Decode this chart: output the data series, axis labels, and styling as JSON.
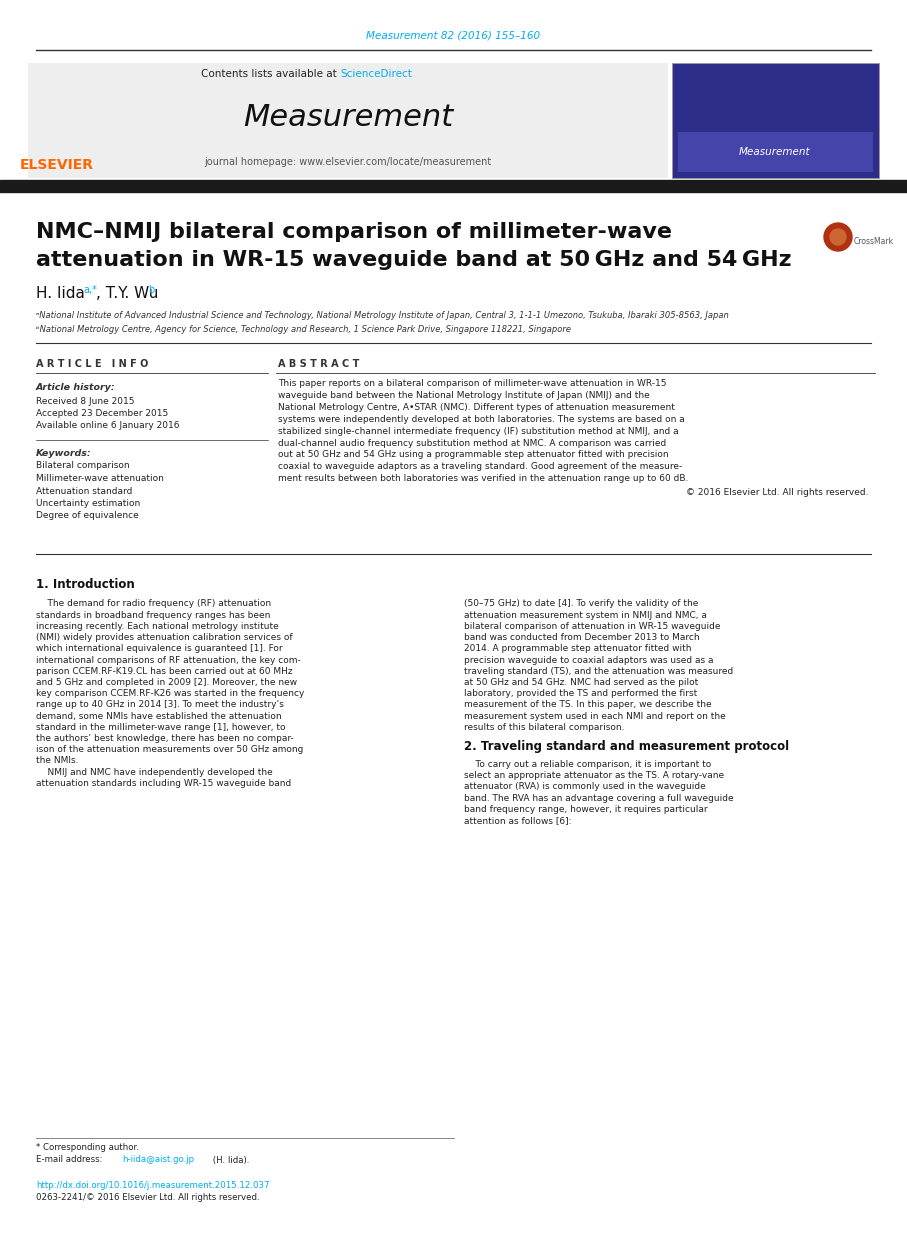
{
  "journal_ref": "Measurement 82 (2016) 155–160",
  "journal_ref_color": "#00AEEF",
  "header_text": "Contents lists available at ",
  "sciencedirect_text": "ScienceDirect",
  "sciencedirect_color": "#00AEEF",
  "journal_title": "Measurement",
  "homepage_text": "journal homepage: www.elsevier.com/locate/measurement",
  "paper_title_line1": "NMC–NMIJ bilateral comparison of millimeter-wave",
  "paper_title_line2": "attenuation in WR-15 waveguide band at 50 GHz and 54 GHz",
  "affil_a": "ᵃNational Institute of Advanced Industrial Science and Technology, National Metrology Institute of Japan, Central 3, 1-1-1 Umezono, Tsukuba, Ibaraki 305-8563, Japan",
  "affil_b": "ᵇNational Metrology Centre, Agency for Science, Technology and Research, 1 Science Park Drive, Singapore 118221, Singapore",
  "article_info_header": "A R T I C L E   I N F O",
  "article_history_header": "Article history:",
  "received": "Received 8 June 2015",
  "accepted": "Accepted 23 December 2015",
  "available": "Available online 6 January 2016",
  "keywords_header": "Keywords:",
  "keywords": [
    "Bilateral comparison",
    "Millimeter-wave attenuation",
    "Attenuation standard",
    "Uncertainty estimation",
    "Degree of equivalence"
  ],
  "abstract_header": "A B S T R A C T",
  "copyright_text": "© 2016 Elsevier Ltd. All rights reserved.",
  "section1_header": "1. Introduction",
  "section2_header": "2. Traveling standard and measurement protocol",
  "footnote_star": "* Corresponding author.",
  "doi_text": "http://dx.doi.org/10.1016/j.measurement.2015.12.037",
  "doi_color": "#00AEEF",
  "issn_text": "0263-2241/© 2016 Elsevier Ltd. All rights reserved.",
  "bg_color": "#FFFFFF",
  "thick_bar_color": "#1a1a1a",
  "abstract_lines": [
    "This paper reports on a bilateral comparison of millimeter-wave attenuation in WR-15",
    "waveguide band between the National Metrology Institute of Japan (NMIJ) and the",
    "National Metrology Centre, A•STAR (NMC). Different types of attenuation measurement",
    "systems were independently developed at both laboratories. The systems are based on a",
    "stabilized single-channel intermediate frequency (IF) substitution method at NMIJ, and a",
    "dual-channel audio frequency substitution method at NMC. A comparison was carried",
    "out at 50 GHz and 54 GHz using a programmable step attenuator fitted with precision",
    "coaxial to waveguide adaptors as a traveling standard. Good agreement of the measure-",
    "ment results between both laboratories was verified in the attenuation range up to 60 dB."
  ],
  "intro_col1_lines": [
    "    The demand for radio frequency (RF) attenuation",
    "standards in broadband frequency ranges has been",
    "increasing recently. Each national metrology institute",
    "(NMI) widely provides attenuation calibration services of",
    "which international equivalence is guaranteed [1]. For",
    "international comparisons of RF attenuation, the key com-",
    "parison CCEM.RF-K19.CL has been carried out at 60 MHz",
    "and 5 GHz and completed in 2009 [2]. Moreover, the new",
    "key comparison CCEM.RF-K26 was started in the frequency",
    "range up to 40 GHz in 2014 [3]. To meet the industry’s",
    "demand, some NMIs have established the attenuation",
    "standard in the millimeter-wave range [1], however, to",
    "the authors’ best knowledge, there has been no compar-",
    "ison of the attenuation measurements over 50 GHz among",
    "the NMIs.",
    "    NMIJ and NMC have independently developed the",
    "attenuation standards including WR-15 waveguide band"
  ],
  "intro_col2_lines": [
    "(50–75 GHz) to date [4]. To verify the validity of the",
    "attenuation measurement system in NMIJ and NMC, a",
    "bilateral comparison of attenuation in WR-15 waveguide",
    "band was conducted from December 2013 to March",
    "2014. A programmable step attenuator fitted with",
    "precision waveguide to coaxial adaptors was used as a",
    "traveling standard (TS), and the attenuation was measured",
    "at 50 GHz and 54 GHz. NMC had served as the pilot",
    "laboratory, provided the TS and performed the first",
    "measurement of the TS. In this paper, we describe the",
    "measurement system used in each NMI and report on the",
    "results of this bilateral comparison."
  ],
  "sec2_lines": [
    "    To carry out a reliable comparison, it is important to",
    "select an appropriate attenuator as the TS. A rotary-vane",
    "attenuator (RVA) is commonly used in the waveguide",
    "band. The RVA has an advantage covering a full waveguide",
    "band frequency range, however, it requires particular",
    "attention as follows [6]:"
  ]
}
